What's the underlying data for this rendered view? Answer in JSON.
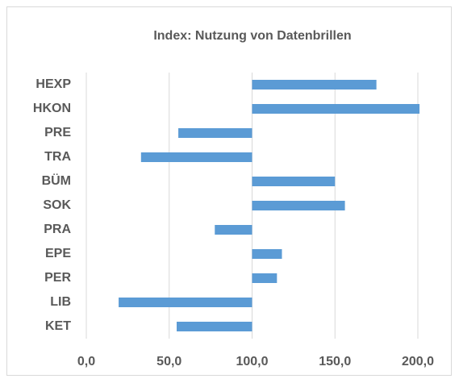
{
  "chart_data": {
    "type": "bar",
    "orientation": "horizontal",
    "title": "Index: Nutzung von Datenbrillen",
    "categories": [
      "HEXP",
      "HKON",
      "PRE",
      "TRA",
      "BÜM",
      "SOK",
      "PRA",
      "EPE",
      "PER",
      "LIB",
      "KET"
    ],
    "values": [
      175,
      201,
      55.5,
      33,
      150,
      156,
      77.5,
      118,
      115,
      19.5,
      54.5
    ],
    "base": 100,
    "color": "#5b9bd5",
    "xlim": [
      0,
      200
    ],
    "xticks": [
      {
        "value": 0,
        "label": "0,0"
      },
      {
        "value": 50,
        "label": "50,0"
      },
      {
        "value": 100,
        "label": "100,0"
      },
      {
        "value": 150,
        "label": "150,0"
      },
      {
        "value": 200,
        "label": "200,0"
      }
    ],
    "grid": true
  }
}
